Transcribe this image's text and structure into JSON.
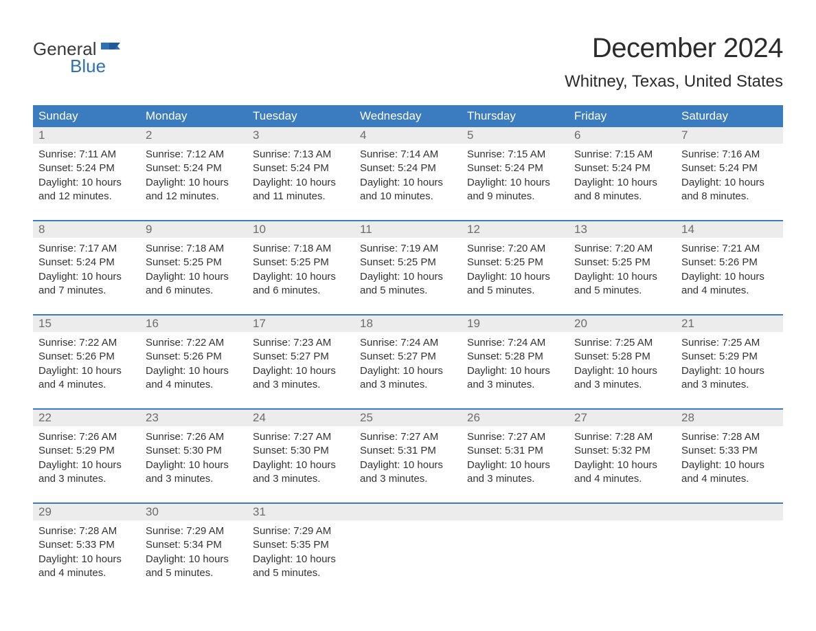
{
  "logo": {
    "word1": "General",
    "word2": "Blue"
  },
  "title": "December 2024",
  "location": "Whitney, Texas, United States",
  "colors": {
    "header_bg": "#3b7bbf",
    "header_text": "#ffffff",
    "daynum_bg": "#ececec",
    "daynum_text": "#6c6c6c",
    "body_text": "#333333",
    "week_border": "#3b7bbf",
    "logo_gray": "#3a3a3a",
    "logo_blue": "#2c71b4",
    "page_bg": "#ffffff"
  },
  "typography": {
    "title_fontsize": 40,
    "location_fontsize": 24,
    "dow_fontsize": 17,
    "daynum_fontsize": 17,
    "body_fontsize": 15
  },
  "layout": {
    "columns": 7,
    "rows": 5
  },
  "dow": [
    "Sunday",
    "Monday",
    "Tuesday",
    "Wednesday",
    "Thursday",
    "Friday",
    "Saturday"
  ],
  "weeks": [
    [
      {
        "n": "1",
        "sr": "Sunrise: 7:11 AM",
        "ss": "Sunset: 5:24 PM",
        "d1": "Daylight: 10 hours",
        "d2": "and 12 minutes."
      },
      {
        "n": "2",
        "sr": "Sunrise: 7:12 AM",
        "ss": "Sunset: 5:24 PM",
        "d1": "Daylight: 10 hours",
        "d2": "and 12 minutes."
      },
      {
        "n": "3",
        "sr": "Sunrise: 7:13 AM",
        "ss": "Sunset: 5:24 PM",
        "d1": "Daylight: 10 hours",
        "d2": "and 11 minutes."
      },
      {
        "n": "4",
        "sr": "Sunrise: 7:14 AM",
        "ss": "Sunset: 5:24 PM",
        "d1": "Daylight: 10 hours",
        "d2": "and 10 minutes."
      },
      {
        "n": "5",
        "sr": "Sunrise: 7:15 AM",
        "ss": "Sunset: 5:24 PM",
        "d1": "Daylight: 10 hours",
        "d2": "and 9 minutes."
      },
      {
        "n": "6",
        "sr": "Sunrise: 7:15 AM",
        "ss": "Sunset: 5:24 PM",
        "d1": "Daylight: 10 hours",
        "d2": "and 8 minutes."
      },
      {
        "n": "7",
        "sr": "Sunrise: 7:16 AM",
        "ss": "Sunset: 5:24 PM",
        "d1": "Daylight: 10 hours",
        "d2": "and 8 minutes."
      }
    ],
    [
      {
        "n": "8",
        "sr": "Sunrise: 7:17 AM",
        "ss": "Sunset: 5:24 PM",
        "d1": "Daylight: 10 hours",
        "d2": "and 7 minutes."
      },
      {
        "n": "9",
        "sr": "Sunrise: 7:18 AM",
        "ss": "Sunset: 5:25 PM",
        "d1": "Daylight: 10 hours",
        "d2": "and 6 minutes."
      },
      {
        "n": "10",
        "sr": "Sunrise: 7:18 AM",
        "ss": "Sunset: 5:25 PM",
        "d1": "Daylight: 10 hours",
        "d2": "and 6 minutes."
      },
      {
        "n": "11",
        "sr": "Sunrise: 7:19 AM",
        "ss": "Sunset: 5:25 PM",
        "d1": "Daylight: 10 hours",
        "d2": "and 5 minutes."
      },
      {
        "n": "12",
        "sr": "Sunrise: 7:20 AM",
        "ss": "Sunset: 5:25 PM",
        "d1": "Daylight: 10 hours",
        "d2": "and 5 minutes."
      },
      {
        "n": "13",
        "sr": "Sunrise: 7:20 AM",
        "ss": "Sunset: 5:25 PM",
        "d1": "Daylight: 10 hours",
        "d2": "and 5 minutes."
      },
      {
        "n": "14",
        "sr": "Sunrise: 7:21 AM",
        "ss": "Sunset: 5:26 PM",
        "d1": "Daylight: 10 hours",
        "d2": "and 4 minutes."
      }
    ],
    [
      {
        "n": "15",
        "sr": "Sunrise: 7:22 AM",
        "ss": "Sunset: 5:26 PM",
        "d1": "Daylight: 10 hours",
        "d2": "and 4 minutes."
      },
      {
        "n": "16",
        "sr": "Sunrise: 7:22 AM",
        "ss": "Sunset: 5:26 PM",
        "d1": "Daylight: 10 hours",
        "d2": "and 4 minutes."
      },
      {
        "n": "17",
        "sr": "Sunrise: 7:23 AM",
        "ss": "Sunset: 5:27 PM",
        "d1": "Daylight: 10 hours",
        "d2": "and 3 minutes."
      },
      {
        "n": "18",
        "sr": "Sunrise: 7:24 AM",
        "ss": "Sunset: 5:27 PM",
        "d1": "Daylight: 10 hours",
        "d2": "and 3 minutes."
      },
      {
        "n": "19",
        "sr": "Sunrise: 7:24 AM",
        "ss": "Sunset: 5:28 PM",
        "d1": "Daylight: 10 hours",
        "d2": "and 3 minutes."
      },
      {
        "n": "20",
        "sr": "Sunrise: 7:25 AM",
        "ss": "Sunset: 5:28 PM",
        "d1": "Daylight: 10 hours",
        "d2": "and 3 minutes."
      },
      {
        "n": "21",
        "sr": "Sunrise: 7:25 AM",
        "ss": "Sunset: 5:29 PM",
        "d1": "Daylight: 10 hours",
        "d2": "and 3 minutes."
      }
    ],
    [
      {
        "n": "22",
        "sr": "Sunrise: 7:26 AM",
        "ss": "Sunset: 5:29 PM",
        "d1": "Daylight: 10 hours",
        "d2": "and 3 minutes."
      },
      {
        "n": "23",
        "sr": "Sunrise: 7:26 AM",
        "ss": "Sunset: 5:30 PM",
        "d1": "Daylight: 10 hours",
        "d2": "and 3 minutes."
      },
      {
        "n": "24",
        "sr": "Sunrise: 7:27 AM",
        "ss": "Sunset: 5:30 PM",
        "d1": "Daylight: 10 hours",
        "d2": "and 3 minutes."
      },
      {
        "n": "25",
        "sr": "Sunrise: 7:27 AM",
        "ss": "Sunset: 5:31 PM",
        "d1": "Daylight: 10 hours",
        "d2": "and 3 minutes."
      },
      {
        "n": "26",
        "sr": "Sunrise: 7:27 AM",
        "ss": "Sunset: 5:31 PM",
        "d1": "Daylight: 10 hours",
        "d2": "and 3 minutes."
      },
      {
        "n": "27",
        "sr": "Sunrise: 7:28 AM",
        "ss": "Sunset: 5:32 PM",
        "d1": "Daylight: 10 hours",
        "d2": "and 4 minutes."
      },
      {
        "n": "28",
        "sr": "Sunrise: 7:28 AM",
        "ss": "Sunset: 5:33 PM",
        "d1": "Daylight: 10 hours",
        "d2": "and 4 minutes."
      }
    ],
    [
      {
        "n": "29",
        "sr": "Sunrise: 7:28 AM",
        "ss": "Sunset: 5:33 PM",
        "d1": "Daylight: 10 hours",
        "d2": "and 4 minutes."
      },
      {
        "n": "30",
        "sr": "Sunrise: 7:29 AM",
        "ss": "Sunset: 5:34 PM",
        "d1": "Daylight: 10 hours",
        "d2": "and 5 minutes."
      },
      {
        "n": "31",
        "sr": "Sunrise: 7:29 AM",
        "ss": "Sunset: 5:35 PM",
        "d1": "Daylight: 10 hours",
        "d2": "and 5 minutes."
      },
      null,
      null,
      null,
      null
    ]
  ]
}
